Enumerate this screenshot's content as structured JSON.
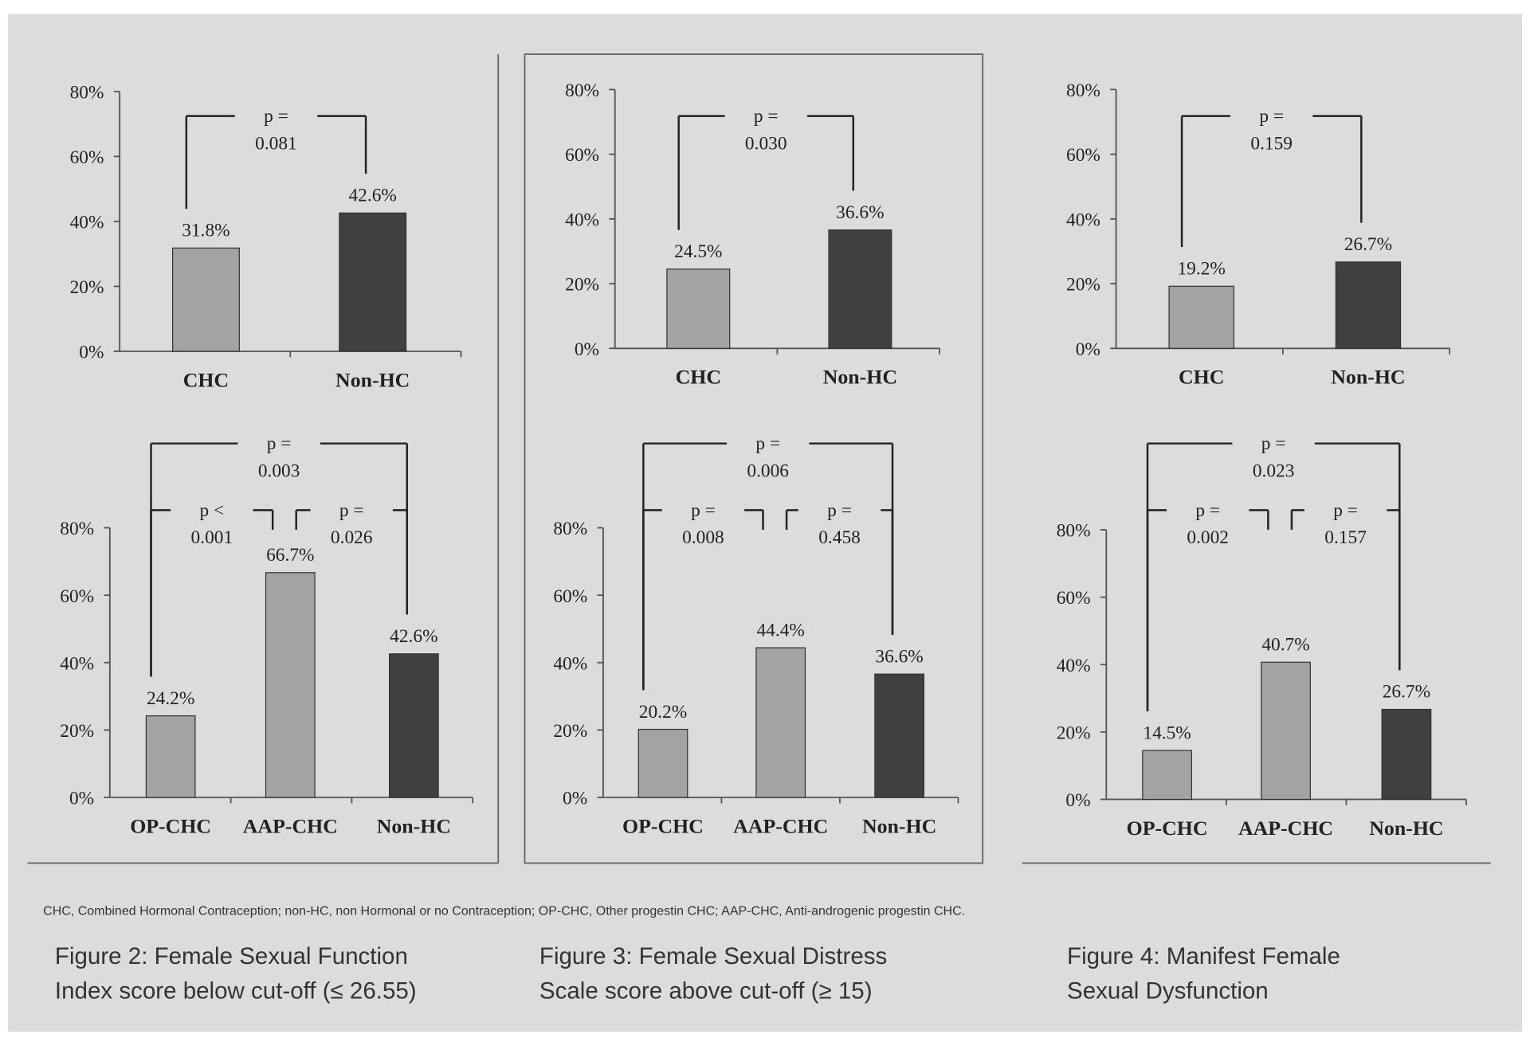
{
  "colors": {
    "background": "#dcdcdc",
    "chc": "#a3a3a3",
    "nonhc": "#404040",
    "axis": "#555555",
    "bracket": "#222222"
  },
  "chart_data": [
    {
      "type": "bar",
      "id": "fig2-top",
      "ylim": [
        0,
        80
      ],
      "yticks": [
        "0%",
        "20%",
        "40%",
        "60%",
        "80%"
      ],
      "categories": [
        "CHC",
        "Non-HC"
      ],
      "values": [
        31.8,
        42.6
      ],
      "labels": [
        "31.8%",
        "42.6%"
      ],
      "series_color": [
        "chc",
        "nonhc"
      ],
      "brackets": [
        {
          "from": 0,
          "to": 1,
          "level": "top",
          "p_line1": "p =",
          "p_line2": "0.081"
        }
      ]
    },
    {
      "type": "bar",
      "id": "fig3-top",
      "ylim": [
        0,
        80
      ],
      "yticks": [
        "0%",
        "20%",
        "40%",
        "60%",
        "80%"
      ],
      "categories": [
        "CHC",
        "Non-HC"
      ],
      "values": [
        24.5,
        36.6
      ],
      "labels": [
        "24.5%",
        "36.6%"
      ],
      "series_color": [
        "chc",
        "nonhc"
      ],
      "brackets": [
        {
          "from": 0,
          "to": 1,
          "level": "top",
          "p_line1": "p =",
          "p_line2": "0.030"
        }
      ]
    },
    {
      "type": "bar",
      "id": "fig4-top",
      "ylim": [
        0,
        80
      ],
      "yticks": [
        "0%",
        "20%",
        "40%",
        "60%",
        "80%"
      ],
      "categories": [
        "CHC",
        "Non-HC"
      ],
      "values": [
        19.2,
        26.7
      ],
      "labels": [
        "19.2%",
        "26.7%"
      ],
      "series_color": [
        "chc",
        "nonhc"
      ],
      "brackets": [
        {
          "from": 0,
          "to": 1,
          "level": "top",
          "p_line1": "p =",
          "p_line2": "0.159"
        }
      ]
    },
    {
      "type": "bar",
      "id": "fig2-bottom",
      "ylim": [
        0,
        80
      ],
      "yticks": [
        "0%",
        "20%",
        "40%",
        "60%",
        "80%"
      ],
      "categories": [
        "OP-CHC",
        "AAP-CHC",
        "Non-HC"
      ],
      "values": [
        24.2,
        66.7,
        42.6
      ],
      "labels": [
        "24.2%",
        "66.7%",
        "42.6%"
      ],
      "series_color": [
        "chc",
        "chc",
        "nonhc"
      ],
      "brackets": [
        {
          "from": 0,
          "to": 2,
          "level": "big",
          "p_line1": "p =",
          "p_line2": "0.003"
        },
        {
          "from": 0,
          "to": 1,
          "level": "small",
          "p_line1": "p <",
          "p_line2": "0.001"
        },
        {
          "from": 1,
          "to": 2,
          "level": "small",
          "p_line1": "p =",
          "p_line2": "0.026"
        }
      ]
    },
    {
      "type": "bar",
      "id": "fig3-bottom",
      "ylim": [
        0,
        80
      ],
      "yticks": [
        "0%",
        "20%",
        "40%",
        "60%",
        "80%"
      ],
      "categories": [
        "OP-CHC",
        "AAP-CHC",
        "Non-HC"
      ],
      "values": [
        20.2,
        44.4,
        36.6
      ],
      "labels": [
        "20.2%",
        "44.4%",
        "36.6%"
      ],
      "series_color": [
        "chc",
        "chc",
        "nonhc"
      ],
      "brackets": [
        {
          "from": 0,
          "to": 2,
          "level": "big",
          "p_line1": "p =",
          "p_line2": "0.006"
        },
        {
          "from": 0,
          "to": 1,
          "level": "small",
          "p_line1": "p =",
          "p_line2": "0.008"
        },
        {
          "from": 1,
          "to": 2,
          "level": "small",
          "p_line1": "p =",
          "p_line2": "0.458"
        }
      ]
    },
    {
      "type": "bar",
      "id": "fig4-bottom",
      "ylim": [
        0,
        80
      ],
      "yticks": [
        "0%",
        "20%",
        "40%",
        "60%",
        "80%"
      ],
      "categories": [
        "OP-CHC",
        "AAP-CHC",
        "Non-HC"
      ],
      "values": [
        14.5,
        40.7,
        26.7
      ],
      "labels": [
        "14.5%",
        "40.7%",
        "26.7%"
      ],
      "series_color": [
        "chc",
        "chc",
        "nonhc"
      ],
      "brackets": [
        {
          "from": 0,
          "to": 2,
          "level": "big",
          "p_line1": "p =",
          "p_line2": "0.023"
        },
        {
          "from": 0,
          "to": 1,
          "level": "small",
          "p_line1": "p =",
          "p_line2": "0.002"
        },
        {
          "from": 1,
          "to": 2,
          "level": "small",
          "p_line1": "p =",
          "p_line2": "0.157"
        }
      ]
    }
  ],
  "footnote": "CHC, Combined Hormonal Contraception; non-HC, non Hormonal or no Contraception; OP-CHC, Other progestin CHC; AAP-CHC, Anti-androgenic progestin CHC.",
  "captions": [
    {
      "line1": "Figure 2: Female Sexual Function",
      "line2": "Index score below cut-off (≤ 26.55)"
    },
    {
      "line1": "Figure 3: Female Sexual Distress",
      "line2": "Scale score above cut-off (≥ 15)"
    },
    {
      "line1": "Figure 4: Manifest Female",
      "line2": "Sexual Dysfunction"
    }
  ]
}
